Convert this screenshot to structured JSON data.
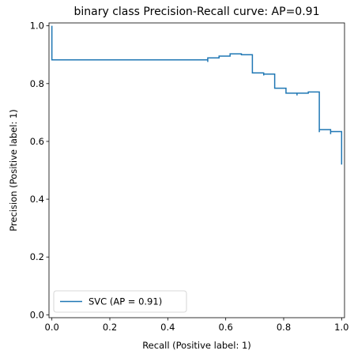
{
  "chart_data": {
    "type": "line",
    "title": "binary class Precision-Recall curve: AP=0.91",
    "xlabel": "Recall (Positive label: 1)",
    "ylabel": "Precision (Positive label: 1)",
    "xlim": [
      -0.01,
      1.01
    ],
    "ylim": [
      -0.01,
      1.01
    ],
    "xticks": [
      0.0,
      0.2,
      0.4,
      0.6,
      0.8,
      1.0
    ],
    "xtick_labels": [
      "0.0",
      "0.2",
      "0.4",
      "0.6",
      "0.8",
      "1.0"
    ],
    "yticks": [
      0.0,
      0.2,
      0.4,
      0.6,
      0.8,
      1.0
    ],
    "ytick_labels": [
      "0.0",
      "0.2",
      "0.4",
      "0.6",
      "0.8",
      "1.0"
    ],
    "grid": false,
    "legend_position": "lower-left",
    "series": [
      {
        "name": "SVC (AP = 0.91)",
        "color": "#1f77b4",
        "drawstyle": "steps-post",
        "recall": [
          1.0,
          1.0,
          0.962,
          0.962,
          0.962,
          0.923,
          0.923,
          0.923,
          0.885,
          0.846,
          0.846,
          0.808,
          0.808,
          0.769,
          0.731,
          0.731,
          0.692,
          0.654,
          0.615,
          0.577,
          0.538,
          0.538,
          0.0
        ],
        "precision": [
          0.52,
          0.634,
          0.625,
          0.641,
          0.641,
          0.632,
          0.642,
          0.771,
          0.767,
          0.759,
          0.767,
          0.778,
          0.784,
          0.833,
          0.828,
          0.837,
          0.9,
          0.903,
          0.895,
          0.889,
          0.875,
          0.882,
          1.0
        ]
      }
    ]
  }
}
